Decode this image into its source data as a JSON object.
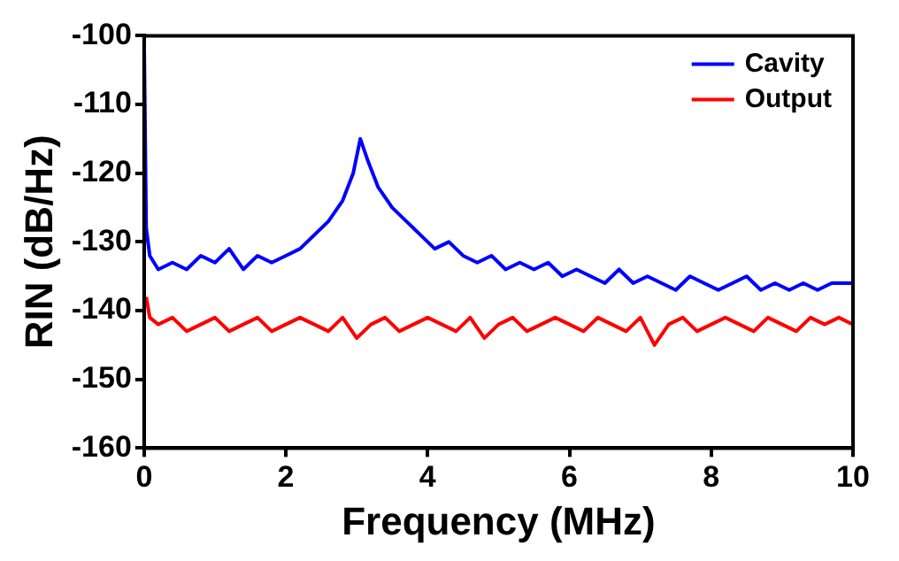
{
  "chart_data": {
    "type": "line",
    "xlabel": "Frequency (MHz)",
    "ylabel": "RIN (dB/Hz)",
    "xlim": [
      0,
      10
    ],
    "xticks": [
      0,
      2,
      4,
      6,
      8,
      10
    ],
    "ylim": [
      -160,
      -100
    ],
    "yticks": [
      -160,
      -150,
      -140,
      -130,
      -120,
      -110,
      -100
    ],
    "grid": false,
    "legend": "top right",
    "marker": "none",
    "line_style": "solid",
    "series": [
      {
        "name": "Cavity",
        "color": "#0000ff",
        "x": [
          0,
          0.03,
          0.08,
          0.2,
          0.4,
          0.6,
          0.8,
          1.0,
          1.2,
          1.4,
          1.6,
          1.8,
          2.0,
          2.2,
          2.4,
          2.6,
          2.8,
          2.95,
          3.05,
          3.15,
          3.3,
          3.5,
          3.7,
          3.9,
          4.1,
          4.3,
          4.5,
          4.7,
          4.9,
          5.1,
          5.3,
          5.5,
          5.7,
          5.9,
          6.1,
          6.3,
          6.5,
          6.7,
          6.9,
          7.1,
          7.3,
          7.5,
          7.7,
          7.9,
          8.1,
          8.3,
          8.5,
          8.7,
          8.9,
          9.1,
          9.3,
          9.5,
          9.7,
          10.0
        ],
        "values": [
          -100,
          -128,
          -132,
          -134,
          -133,
          -134,
          -132,
          -133,
          -131,
          -134,
          -132,
          -133,
          -132,
          -131,
          -129,
          -127,
          -124,
          -120,
          -115,
          -118,
          -122,
          -125,
          -127,
          -129,
          -131,
          -130,
          -132,
          -133,
          -132,
          -134,
          -133,
          -134,
          -133,
          -135,
          -134,
          -135,
          -136,
          -134,
          -136,
          -135,
          -136,
          -137,
          -135,
          -136,
          -137,
          -136,
          -135,
          -137,
          -136,
          -137,
          -136,
          -137,
          -136,
          -136
        ]
      },
      {
        "name": "Output",
        "color": "#ff0000",
        "x": [
          0.03,
          0.08,
          0.2,
          0.4,
          0.6,
          0.8,
          1.0,
          1.2,
          1.4,
          1.6,
          1.8,
          2.0,
          2.2,
          2.4,
          2.6,
          2.8,
          3.0,
          3.2,
          3.4,
          3.6,
          3.8,
          4.0,
          4.2,
          4.4,
          4.6,
          4.8,
          5.0,
          5.2,
          5.4,
          5.6,
          5.8,
          6.0,
          6.2,
          6.4,
          6.6,
          6.8,
          7.0,
          7.2,
          7.4,
          7.6,
          7.8,
          8.0,
          8.2,
          8.4,
          8.6,
          8.8,
          9.0,
          9.2,
          9.4,
          9.6,
          9.8,
          10.0
        ],
        "values": [
          -138,
          -141,
          -142,
          -141,
          -143,
          -142,
          -141,
          -143,
          -142,
          -141,
          -143,
          -142,
          -141,
          -142,
          -143,
          -141,
          -144,
          -142,
          -141,
          -143,
          -142,
          -141,
          -142,
          -143,
          -141,
          -144,
          -142,
          -141,
          -143,
          -142,
          -141,
          -142,
          -143,
          -141,
          -142,
          -143,
          -141,
          -145,
          -142,
          -141,
          -143,
          -142,
          -141,
          -142,
          -143,
          -141,
          -142,
          -143,
          -141,
          -142,
          -141,
          -142
        ]
      }
    ]
  }
}
